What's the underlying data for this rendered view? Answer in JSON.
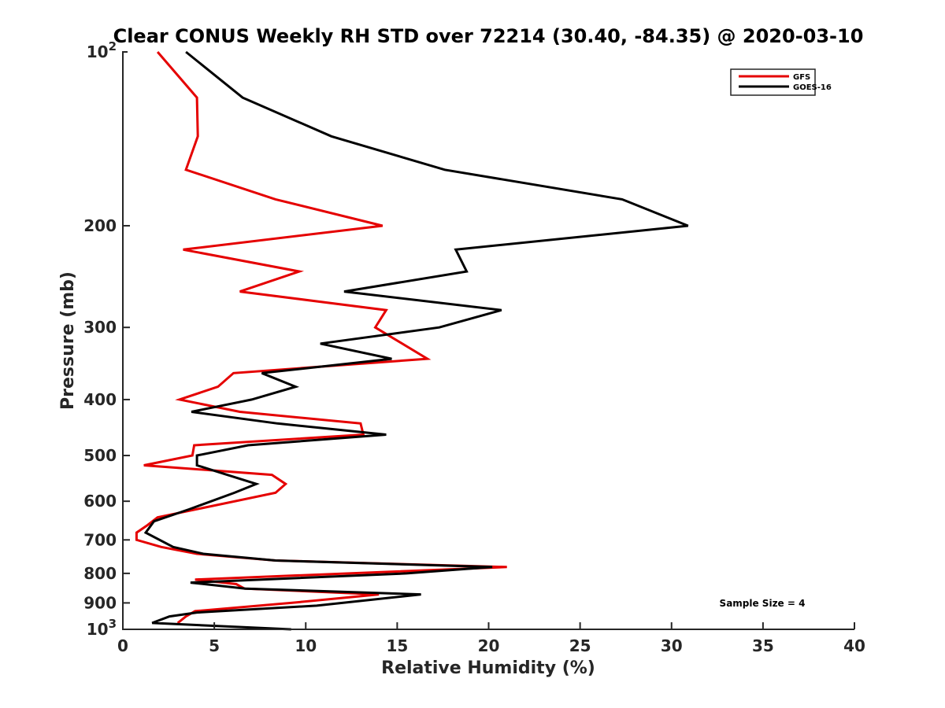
{
  "chart_data": {
    "type": "line",
    "title": "Clear CONUS Weekly RH STD over 72214 (30.40, -84.35) @ 2020-03-10",
    "xlabel": "Relative Humidity (%)",
    "ylabel": "Pressure (mb)",
    "xlim": [
      0,
      40
    ],
    "ylim": [
      100,
      1000
    ],
    "yscale": "log",
    "yreversed": true,
    "grid": false,
    "legend_position": "top-right",
    "xticks": [
      0,
      5,
      10,
      15,
      20,
      25,
      30,
      35,
      40
    ],
    "xtick_labels": [
      "0",
      "5",
      "10",
      "15",
      "20",
      "25",
      "30",
      "35",
      "40"
    ],
    "yticks": [
      100,
      200,
      300,
      400,
      500,
      600,
      700,
      800,
      900,
      1000
    ],
    "ytick_labels": [
      {
        "base": "10",
        "exp": "2"
      },
      {
        "base": "200",
        "exp": ""
      },
      {
        "base": "300",
        "exp": ""
      },
      {
        "base": "400",
        "exp": ""
      },
      {
        "base": "500",
        "exp": ""
      },
      {
        "base": "600",
        "exp": ""
      },
      {
        "base": "700",
        "exp": ""
      },
      {
        "base": "800",
        "exp": ""
      },
      {
        "base": "900",
        "exp": ""
      },
      {
        "base": "10",
        "exp": "3"
      }
    ],
    "annotation": "Sample Size = 4",
    "series": [
      {
        "name": "GFS",
        "color": "#e50000",
        "points": [
          [
            1.9,
            100
          ],
          [
            4.05,
            120
          ],
          [
            4.1,
            140
          ],
          [
            3.45,
            160
          ],
          [
            8.35,
            180
          ],
          [
            14.2,
            200
          ],
          [
            3.3,
            220
          ],
          [
            9.65,
            240
          ],
          [
            6.4,
            260
          ],
          [
            14.4,
            280
          ],
          [
            13.8,
            300
          ],
          [
            16.65,
            340
          ],
          [
            6.05,
            360
          ],
          [
            5.2,
            380
          ],
          [
            3.1,
            400
          ],
          [
            6.4,
            420
          ],
          [
            13.0,
            440
          ],
          [
            13.15,
            460
          ],
          [
            3.9,
            480
          ],
          [
            3.8,
            500
          ],
          [
            1.15,
            520
          ],
          [
            8.15,
            540
          ],
          [
            8.9,
            560
          ],
          [
            8.35,
            580
          ],
          [
            1.9,
            640
          ],
          [
            1.35,
            660
          ],
          [
            0.75,
            680
          ],
          [
            0.75,
            700
          ],
          [
            2.1,
            720
          ],
          [
            4.05,
            740
          ],
          [
            8.35,
            760
          ],
          [
            21.0,
            780
          ],
          [
            3.95,
            820
          ],
          [
            6.2,
            835
          ],
          [
            6.65,
            850
          ],
          [
            14.0,
            870
          ],
          [
            9.2,
            900
          ],
          [
            3.95,
            930
          ],
          [
            3.45,
            950
          ],
          [
            3.0,
            975
          ]
        ]
      },
      {
        "name": "GOES-16",
        "color": "#000000",
        "points": [
          [
            3.45,
            100
          ],
          [
            6.55,
            120
          ],
          [
            11.4,
            140
          ],
          [
            17.6,
            160
          ],
          [
            27.3,
            180
          ],
          [
            30.9,
            200
          ],
          [
            18.2,
            220
          ],
          [
            18.8,
            240
          ],
          [
            12.1,
            260
          ],
          [
            20.7,
            280
          ],
          [
            17.3,
            300
          ],
          [
            10.8,
            320
          ],
          [
            14.7,
            340
          ],
          [
            7.6,
            360
          ],
          [
            9.45,
            380
          ],
          [
            7.05,
            400
          ],
          [
            3.75,
            420
          ],
          [
            8.45,
            440
          ],
          [
            14.4,
            460
          ],
          [
            6.85,
            480
          ],
          [
            4.05,
            500
          ],
          [
            4.05,
            520
          ],
          [
            5.7,
            540
          ],
          [
            7.3,
            560
          ],
          [
            6.1,
            580
          ],
          [
            3.6,
            620
          ],
          [
            1.7,
            650
          ],
          [
            1.25,
            680
          ],
          [
            2.75,
            720
          ],
          [
            4.4,
            740
          ],
          [
            8.35,
            760
          ],
          [
            20.2,
            780
          ],
          [
            15.5,
            800
          ],
          [
            3.7,
            830
          ],
          [
            6.7,
            850
          ],
          [
            16.3,
            870
          ],
          [
            10.6,
            910
          ],
          [
            4.05,
            935
          ],
          [
            2.55,
            950
          ],
          [
            1.6,
            975
          ],
          [
            9.2,
            1000
          ]
        ]
      }
    ]
  }
}
